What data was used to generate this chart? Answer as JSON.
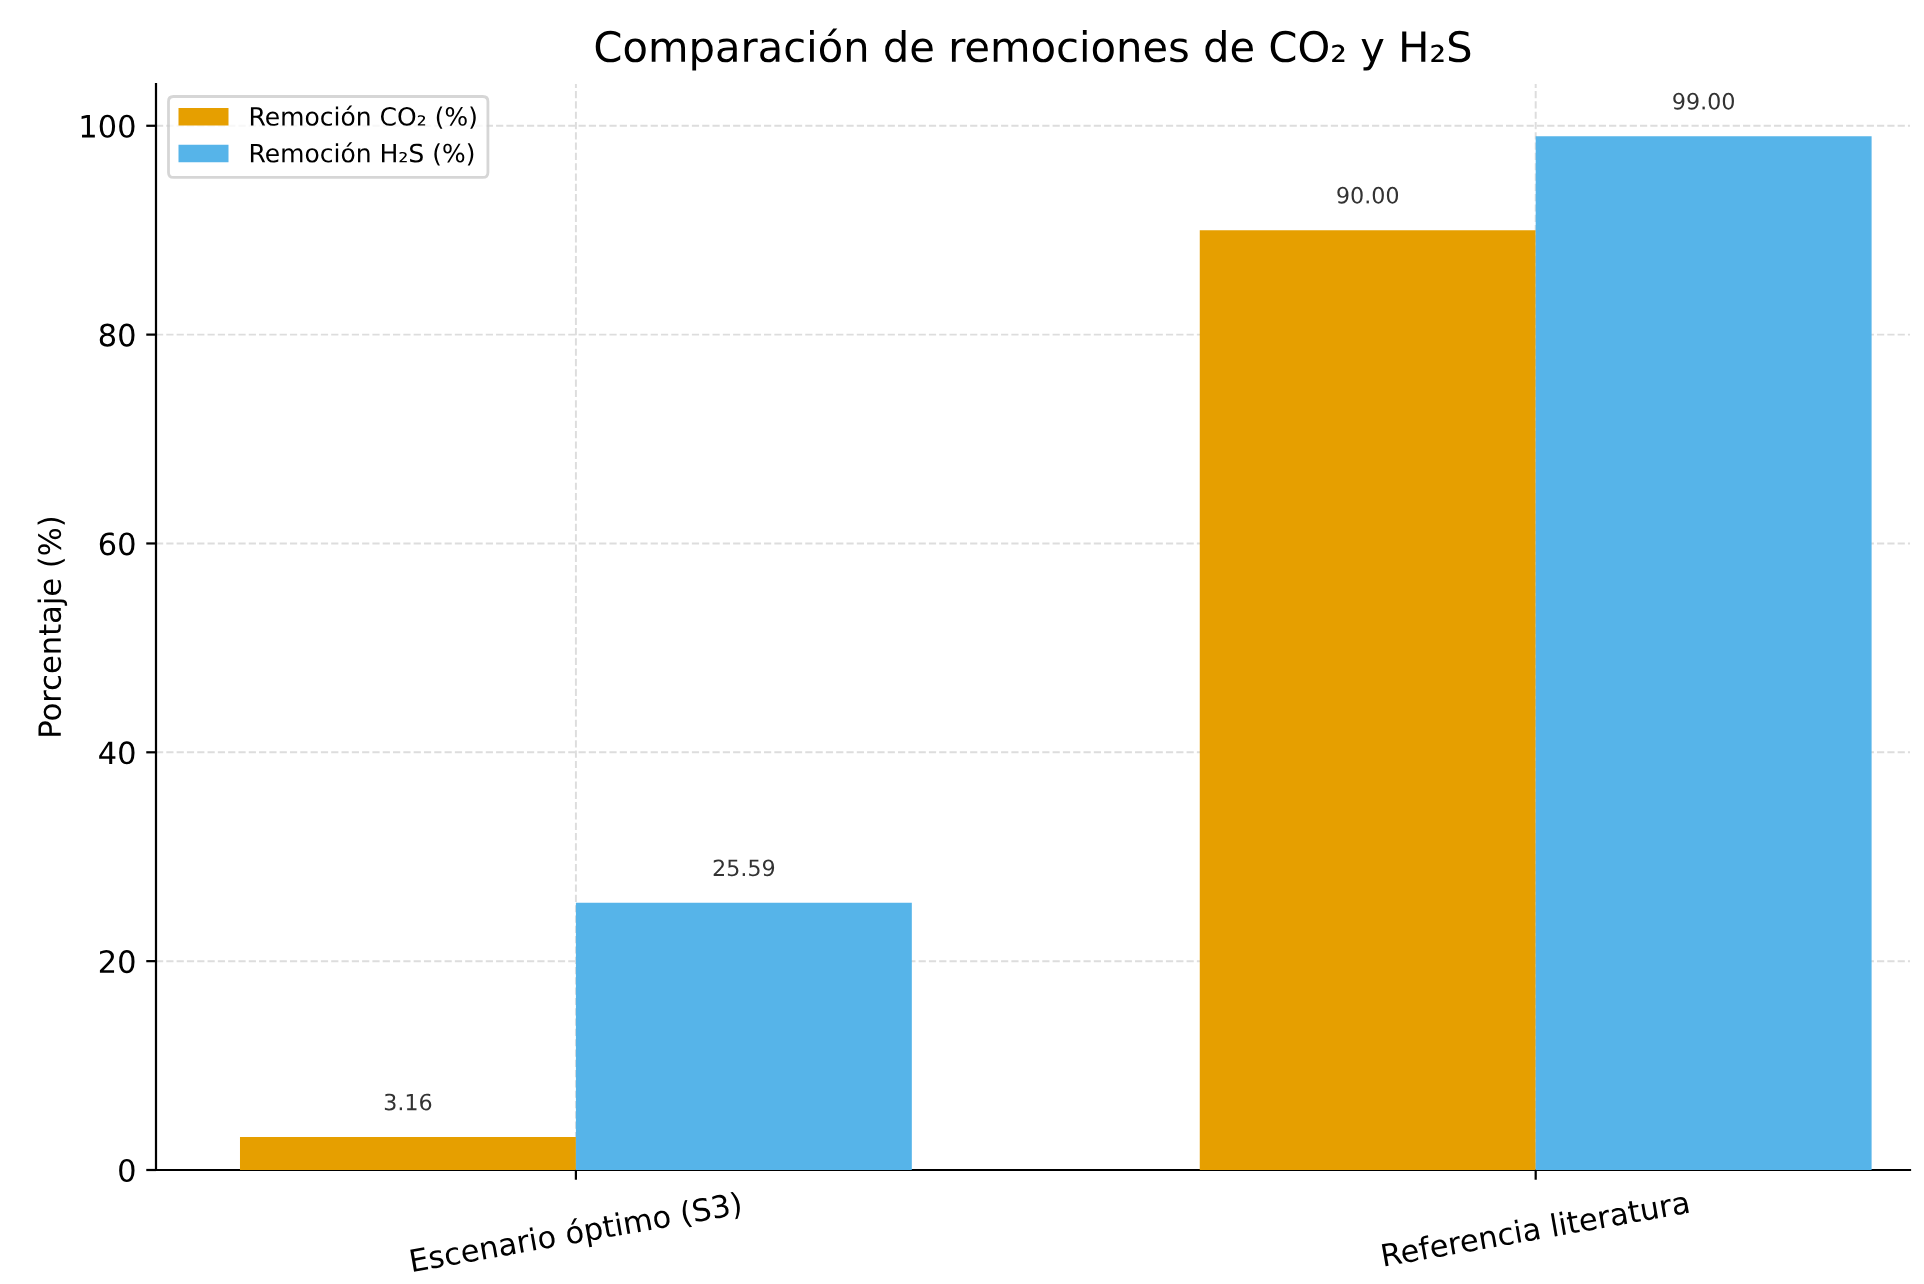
{
  "chart_data": {
    "type": "bar",
    "title": "Comparación de remociones de CO₂ y H₂S",
    "ylabel": "Porcentaje (%)",
    "categories": [
      "Escenario óptimo (S3)",
      "Referencia literatura"
    ],
    "series": [
      {
        "name": "Remoción CO₂ (%)",
        "color": "#e69f00",
        "values": [
          3.16,
          90.0
        ],
        "value_labels": [
          "3.16",
          "90.00"
        ]
      },
      {
        "name": "Remoción H₂S (%)",
        "color": "#56b4e9",
        "values": [
          25.59,
          99.0
        ],
        "value_labels": [
          "25.59",
          "99.00"
        ]
      }
    ],
    "ylim": [
      0,
      104
    ],
    "yticks": [
      0,
      20,
      40,
      60,
      80,
      100
    ],
    "grid": true,
    "legend": "top left"
  }
}
